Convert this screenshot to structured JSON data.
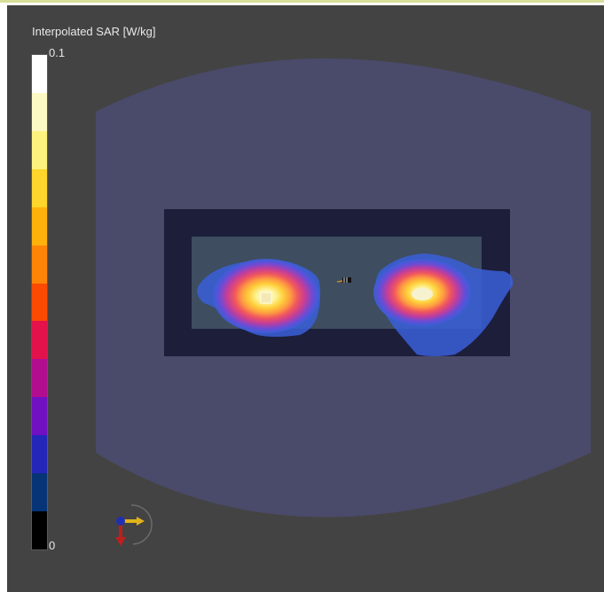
{
  "legend": {
    "title": "Interpolated SAR [W/kg]",
    "max_label": "0.1",
    "min_label": "0",
    "colors": [
      "#ffffff",
      "#fdf9c4",
      "#fdf27d",
      "#fed52b",
      "#feb10b",
      "#fe8408",
      "#fc4a03",
      "#e4124a",
      "#b10d8e",
      "#7010c2",
      "#2426b9",
      "#063476",
      "#000000"
    ]
  },
  "viewport": {
    "background": "#434343",
    "phantom_color": "#4a4a6a",
    "device_outline_color": "#1c1e3a",
    "inner_panel_color": "#3e4d60"
  },
  "axes_icon": {
    "name": "orientation-axes-icon"
  }
}
